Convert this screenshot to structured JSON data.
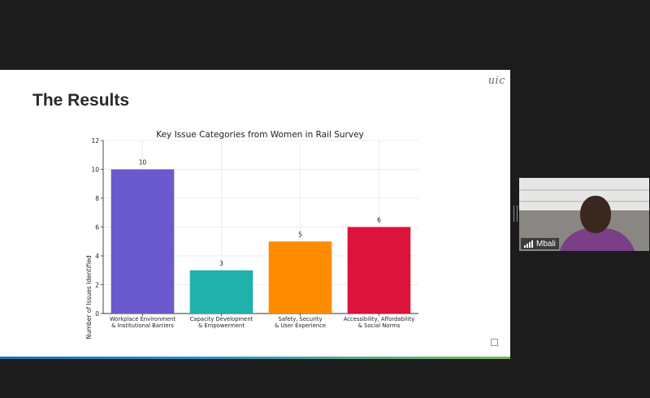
{
  "slide": {
    "title": "The Results",
    "logo_text": "uic"
  },
  "participant": {
    "name": "Mbali"
  },
  "chart_data": {
    "type": "bar",
    "title": "Key Issue Categories from Women in Rail Survey",
    "xlabel": "",
    "ylabel": "Number of Issues Identified",
    "ylim": [
      0,
      12
    ],
    "yticks": [
      0,
      2,
      4,
      6,
      8,
      10,
      12
    ],
    "grid": true,
    "categories": [
      [
        "Workplace Environment",
        "& Institutional Barriers"
      ],
      [
        "Capacity Development",
        "& Empowerment"
      ],
      [
        "Safety, Security",
        "& User Experience"
      ],
      [
        "Accessibility, Affordability",
        "& Social Norms"
      ]
    ],
    "values": [
      10,
      3,
      5,
      6
    ],
    "colors": [
      "#6a5acd",
      "#20b2aa",
      "#ff8c00",
      "#dc143c"
    ]
  }
}
